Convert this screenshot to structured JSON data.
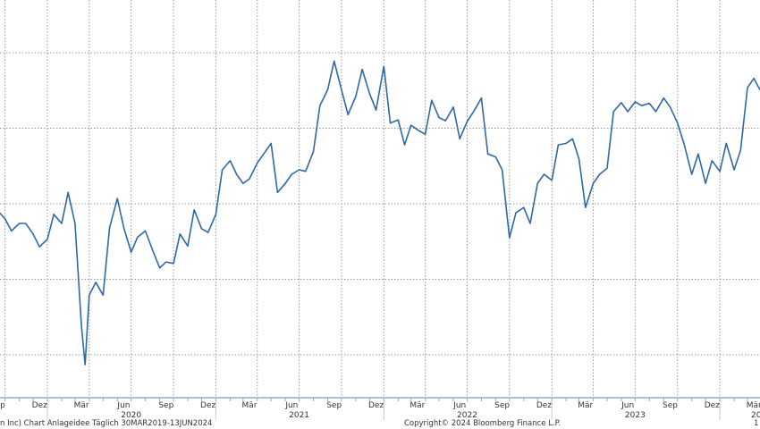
{
  "chart_data": {
    "type": "line",
    "title": "",
    "xlabel": "",
    "ylabel": "",
    "grid": true,
    "y_axis_labels_visible": false,
    "ylim": [
      -0.56,
      4.7
    ],
    "y_gridlines": [
      0,
      1,
      2,
      3,
      4
    ],
    "xlim": [
      "2019-08-28",
      "2024-03-28"
    ],
    "line_color": "#2e69a6",
    "grid_color": "#9a9a9a",
    "axis_color": "#7f9cb8",
    "x_ticks": [
      {
        "date": "2019-09-15",
        "label": "Sep"
      },
      {
        "date": "2019-12-15",
        "label": "Dez"
      },
      {
        "date": "2020-03-15",
        "label": "Mär"
      },
      {
        "date": "2020-06-15",
        "label": "Jun"
      },
      {
        "date": "2020-09-15",
        "label": "Sep"
      },
      {
        "date": "2020-12-15",
        "label": "Dez"
      },
      {
        "date": "2021-03-15",
        "label": "Mär"
      },
      {
        "date": "2021-06-15",
        "label": "Jun"
      },
      {
        "date": "2021-09-15",
        "label": "Sep"
      },
      {
        "date": "2021-12-15",
        "label": "Dez"
      },
      {
        "date": "2022-03-15",
        "label": "Mär"
      },
      {
        "date": "2022-06-15",
        "label": "Jun"
      },
      {
        "date": "2022-09-15",
        "label": "Sep"
      },
      {
        "date": "2022-12-15",
        "label": "Dez"
      },
      {
        "date": "2023-03-15",
        "label": "Mär"
      },
      {
        "date": "2023-06-15",
        "label": "Jun"
      },
      {
        "date": "2023-09-15",
        "label": "Sep"
      },
      {
        "date": "2023-12-15",
        "label": "Dez"
      },
      {
        "date": "2024-03-15",
        "label": "Mär"
      }
    ],
    "year_labels": [
      {
        "year": "2020",
        "date": "2020-07-01"
      },
      {
        "year": "2021",
        "date": "2021-07-01"
      },
      {
        "year": "2022",
        "date": "2022-07-01"
      },
      {
        "year": "2023",
        "date": "2023-07-01"
      },
      {
        "year": "20",
        "date": "2024-03-20"
      }
    ],
    "series": [
      {
        "x": [
          "2019-09-15",
          "2019-10-01",
          "2019-10-15",
          "2019-11-01",
          "2019-11-15",
          "2019-12-01",
          "2019-12-15",
          "2020-01-01",
          "2020-01-15",
          "2020-02-01",
          "2020-02-15",
          "2020-03-01",
          "2020-03-15",
          "2020-03-23",
          "2020-04-01",
          "2020-04-15",
          "2020-05-01",
          "2020-05-15",
          "2020-06-01",
          "2020-06-15",
          "2020-07-01",
          "2020-07-15",
          "2020-08-01",
          "2020-08-15",
          "2020-09-01",
          "2020-09-15",
          "2020-10-01",
          "2020-10-15",
          "2020-11-01",
          "2020-11-15",
          "2020-12-01",
          "2020-12-15",
          "2021-01-01",
          "2021-01-15",
          "2021-02-01",
          "2021-02-15",
          "2021-03-01",
          "2021-03-15",
          "2021-04-01",
          "2021-04-15",
          "2021-05-01",
          "2021-05-15",
          "2021-06-01",
          "2021-06-15",
          "2021-07-01",
          "2021-07-15",
          "2021-08-01",
          "2021-08-15",
          "2021-09-01",
          "2021-09-15",
          "2021-10-01",
          "2021-10-15",
          "2021-11-01",
          "2021-11-15",
          "2021-12-01",
          "2021-12-15",
          "2022-01-01",
          "2022-01-15",
          "2022-02-01",
          "2022-02-15",
          "2022-03-01",
          "2022-03-15",
          "2022-04-01",
          "2022-04-15",
          "2022-05-01",
          "2022-05-15",
          "2022-06-01",
          "2022-06-15",
          "2022-07-01",
          "2022-07-15",
          "2022-08-01",
          "2022-08-15",
          "2022-09-01",
          "2022-09-15",
          "2022-10-01",
          "2022-10-15",
          "2022-11-01",
          "2022-11-15",
          "2022-12-01",
          "2022-12-15",
          "2023-01-01",
          "2023-01-15",
          "2023-02-01",
          "2023-02-15",
          "2023-03-01",
          "2023-03-15",
          "2023-04-01",
          "2023-04-15",
          "2023-05-01",
          "2023-05-15",
          "2023-06-01",
          "2023-06-15",
          "2023-07-01",
          "2023-07-15",
          "2023-08-01",
          "2023-08-15",
          "2023-09-01",
          "2023-09-15",
          "2023-10-01",
          "2023-10-15",
          "2023-11-01",
          "2023-11-15",
          "2023-12-01",
          "2023-12-15",
          "2024-01-01",
          "2024-01-15",
          "2024-02-01",
          "2024-02-15",
          "2024-03-01",
          "2024-03-15",
          "2024-03-28"
        ],
        "y": [
          1.91,
          1.8,
          1.64,
          1.74,
          1.74,
          1.6,
          1.43,
          1.53,
          1.86,
          1.74,
          2.15,
          1.74,
          0.38,
          -0.13,
          0.79,
          0.96,
          0.79,
          1.68,
          2.07,
          1.68,
          1.36,
          1.56,
          1.64,
          1.41,
          1.15,
          1.23,
          1.21,
          1.6,
          1.44,
          1.92,
          1.67,
          1.62,
          1.86,
          2.45,
          2.57,
          2.39,
          2.27,
          2.33,
          2.54,
          2.66,
          2.8,
          2.15,
          2.27,
          2.39,
          2.45,
          2.43,
          2.69,
          3.3,
          3.51,
          3.89,
          3.51,
          3.18,
          3.42,
          3.78,
          3.46,
          3.24,
          3.82,
          3.07,
          3.11,
          2.78,
          3.04,
          2.98,
          2.92,
          3.37,
          3.14,
          3.1,
          3.28,
          2.86,
          3.09,
          3.22,
          3.4,
          2.66,
          2.62,
          2.45,
          1.55,
          1.88,
          1.95,
          1.74,
          2.27,
          2.39,
          2.31,
          2.78,
          2.8,
          2.86,
          2.59,
          1.95,
          2.27,
          2.39,
          2.47,
          3.22,
          3.34,
          3.22,
          3.35,
          3.3,
          3.33,
          3.22,
          3.4,
          3.28,
          3.07,
          2.8,
          2.39,
          2.66,
          2.27,
          2.57,
          2.43,
          2.8,
          2.45,
          2.71,
          3.54,
          3.66,
          3.51
        ]
      }
    ]
  },
  "footer": {
    "left": "n Inc) Chart Anlageidee  Täglich 30MAR2019-13JUN2024",
    "center": "Copyright© 2024 Bloomberg Finance L.P.",
    "right": "1"
  }
}
